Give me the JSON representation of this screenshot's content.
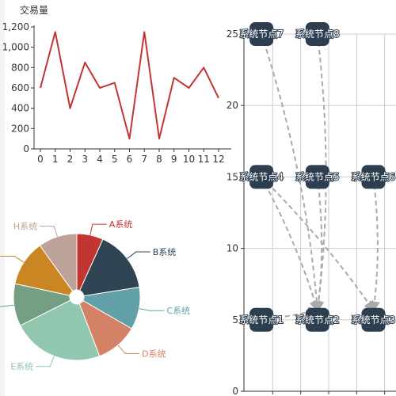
{
  "chart_data": [
    {
      "type": "line",
      "title": "",
      "ylabel": "交易量",
      "x": [
        0,
        1,
        2,
        3,
        4,
        5,
        6,
        7,
        8,
        9,
        10,
        11,
        12
      ],
      "ylim": [
        0,
        1200
      ],
      "yticks": [
        "0",
        "200",
        "400",
        "600",
        "800",
        "1,000",
        "1,200"
      ],
      "series": [
        {
          "values": [
            600,
            1150,
            400,
            850,
            600,
            650,
            100,
            1150,
            100,
            700,
            600,
            800,
            500
          ],
          "color": "#c23531"
        }
      ]
    },
    {
      "type": "pie",
      "slices": [
        {
          "name": "A系统",
          "value": 7.5,
          "color": "#c23531"
        },
        {
          "name": "B系统",
          "value": 17.5,
          "color": "#2f4554"
        },
        {
          "name": "C系统",
          "value": 12,
          "color": "#61a0a8"
        },
        {
          "name": "D系统",
          "value": 12,
          "color": "#d48265"
        },
        {
          "name": "E系统",
          "value": 26,
          "color": "#91c7ae"
        },
        {
          "name": "F系统",
          "value": 12,
          "color": "#749f83"
        },
        {
          "name": "G系统",
          "value": 13,
          "color": "#ca8622"
        },
        {
          "name": "H系统",
          "value": 11,
          "color": "#bda29a"
        }
      ]
    },
    {
      "type": "graph",
      "xlim": [
        0,
        30
      ],
      "ylim": [
        0,
        25
      ],
      "yticks": [
        "0",
        "5",
        "10",
        "15",
        "20",
        "25"
      ],
      "grid": true,
      "nodes": [
        {
          "name": "系统节点1",
          "x": 2,
          "y": 5
        },
        {
          "name": "系统节点2",
          "x": 12,
          "y": 5
        },
        {
          "name": "系统节点3",
          "x": 22,
          "y": 5
        },
        {
          "name": "系统节点4",
          "x": 2,
          "y": 15
        },
        {
          "name": "系统节点5",
          "x": 12,
          "y": 15
        },
        {
          "name": "系统节点6",
          "x": 22,
          "y": 15
        },
        {
          "name": "系统节点7",
          "x": 2,
          "y": 25
        },
        {
          "name": "系统节点8",
          "x": 12,
          "y": 25
        }
      ],
      "links": [
        {
          "source": 0,
          "target": 1
        },
        {
          "source": 3,
          "target": 1
        },
        {
          "source": 3,
          "target": 2
        },
        {
          "source": 4,
          "target": 1
        },
        {
          "source": 5,
          "target": 2
        },
        {
          "source": 6,
          "target": 1
        },
        {
          "source": 7,
          "target": 1
        }
      ]
    }
  ]
}
